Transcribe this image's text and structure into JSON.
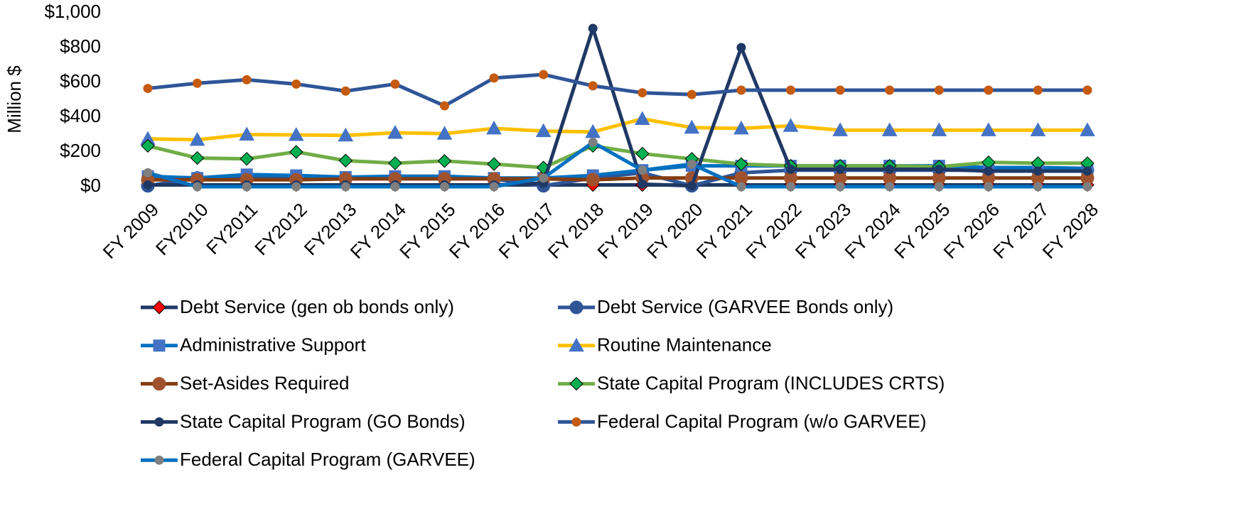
{
  "chart_data": {
    "type": "line",
    "y_label": "Million $",
    "categories": [
      "FY 2009",
      "FY2010",
      "FY2011",
      "FY2012",
      "FY2013",
      "FY 2014",
      "FY 2015",
      "FY 2016",
      "FY 2017",
      "FY 2018",
      "FY 2019",
      "FY 2020",
      "FY 2021",
      "FY 2022",
      "FY 2023",
      "FY 2024",
      "FY 2025",
      "FY 2026",
      "FY 2027",
      "FY 2028"
    ],
    "ylim": [
      0,
      1000
    ],
    "yticks": [
      {
        "value": 0,
        "label": "$0"
      },
      {
        "value": 200,
        "label": "$200"
      },
      {
        "value": 400,
        "label": "$400"
      },
      {
        "value": 600,
        "label": "$600"
      },
      {
        "value": 800,
        "label": "$800"
      },
      {
        "value": 1000,
        "label": "$1,000"
      }
    ],
    "grid": false,
    "legend": "bottom",
    "series": [
      {
        "name": "Debt Service (gen ob bonds only)",
        "color": "#1f3864",
        "marker": "diamond",
        "marker_color": "#ff0000",
        "values": [
          10,
          10,
          10,
          10,
          10,
          10,
          10,
          10,
          10,
          10,
          10,
          10,
          10,
          10,
          10,
          10,
          10,
          10,
          10,
          10
        ]
      },
      {
        "name": "Debt Service (GARVEE Bonds only)",
        "color": "#2f5597",
        "marker": "circle",
        "marker_color": "#2f5597",
        "values": [
          5,
          50,
          60,
          55,
          50,
          55,
          55,
          45,
          5,
          50,
          80,
          5,
          80,
          95,
          95,
          95,
          95,
          95,
          95,
          95
        ]
      },
      {
        "name": "Administrative Support",
        "color": "#0070c0",
        "marker": "square",
        "marker_color": "#4472c4",
        "values": [
          60,
          50,
          70,
          65,
          55,
          60,
          60,
          50,
          50,
          65,
          95,
          120,
          120,
          120,
          120,
          120,
          120,
          110,
          110,
          105
        ]
      },
      {
        "name": "Routine Maintenance",
        "color": "#ffc000",
        "marker": "triangle",
        "marker_color": "#4472c4",
        "values": [
          275,
          270,
          300,
          298,
          295,
          310,
          305,
          335,
          320,
          315,
          390,
          340,
          335,
          350,
          325,
          325,
          325,
          325,
          325,
          325
        ]
      },
      {
        "name": "Set-Asides Required",
        "color": "#843c0c",
        "marker": "circle",
        "marker_color": "#a0522d",
        "values": [
          40,
          40,
          40,
          40,
          45,
          45,
          45,
          45,
          45,
          40,
          50,
          50,
          50,
          50,
          50,
          50,
          50,
          50,
          50,
          50
        ]
      },
      {
        "name": "State Capital Program (INCLUDES CRTS)",
        "color": "#70ad47",
        "marker": "diamond",
        "marker_color": "#00b050",
        "values": [
          235,
          165,
          160,
          200,
          150,
          135,
          148,
          130,
          110,
          235,
          190,
          160,
          130,
          120,
          120,
          120,
          115,
          140,
          135,
          135
        ]
      },
      {
        "name": "State Capital Program (GO Bonds)",
        "color": "#1f3864",
        "marker": "smallcircle",
        "marker_color": "#1f3864",
        "values": [
          10,
          10,
          10,
          10,
          10,
          10,
          10,
          10,
          20,
          910,
          15,
          5,
          800,
          100,
          100,
          100,
          100,
          90,
          90,
          90
        ]
      },
      {
        "name": "Federal Capital Program (w/o  GARVEE)",
        "color": "#2f5597",
        "marker": "smallcircle",
        "marker_color": "#c55a11",
        "values": [
          565,
          595,
          615,
          590,
          550,
          590,
          465,
          625,
          645,
          580,
          540,
          530,
          555,
          555,
          555,
          555,
          555,
          555,
          555,
          555
        ]
      },
      {
        "name": "Federal Capital Program (GARVEE)",
        "color": "#0070c0",
        "marker": "smallcircle",
        "marker_color": "#7f7f7f",
        "values": [
          80,
          0,
          0,
          0,
          0,
          0,
          0,
          0,
          50,
          255,
          95,
          130,
          0,
          0,
          0,
          0,
          0,
          0,
          0,
          0
        ]
      }
    ]
  }
}
